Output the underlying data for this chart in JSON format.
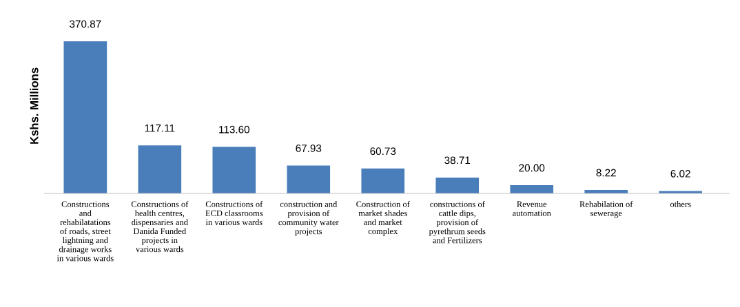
{
  "chart_data": {
    "type": "bar",
    "ylabel": "Kshs. Millions",
    "color": "#4a7ebb",
    "tick_labels": "x",
    "categories": [
      "Constructions and rehabilatations of roads, street lightning and drainage works in various wards",
      "Constructions of health centres, dispensaries and Danida Funded projects in various wards",
      "Constructions of ECD classrooms in various wards",
      "construction and provision of community water projects",
      "Construction of market shades and market complex",
      "constructions of cattle dips, provision of pyrethrum seeds and Fertilizers",
      "Revenue automation",
      "Rehabilation of sewerage",
      "others"
    ],
    "values": [
      370.87,
      117.11,
      113.6,
      67.93,
      60.73,
      38.71,
      20.0,
      8.22,
      6.02
    ],
    "value_labels": [
      "370.87",
      "117.11",
      "113.60",
      "67.93",
      "60.73",
      "38.71",
      "20.00",
      "8.22",
      "6.02"
    ]
  }
}
